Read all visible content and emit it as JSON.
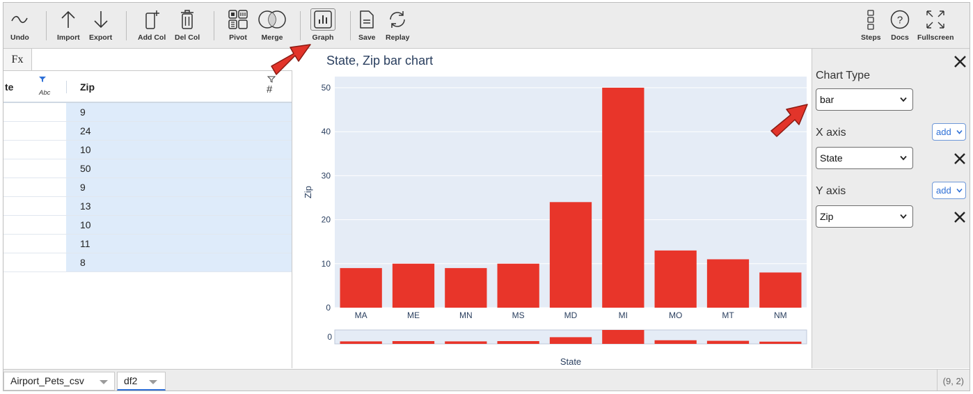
{
  "toolbar": {
    "undo": "Undo",
    "import": "Import",
    "export": "Export",
    "add_col": "Add Col",
    "del_col": "Del Col",
    "pivot": "Pivot",
    "merge": "Merge",
    "graph": "Graph",
    "save": "Save",
    "replay": "Replay",
    "steps": "Steps",
    "docs": "Docs",
    "fullscreen": "Fullscreen"
  },
  "formula_bar": {
    "label": "Fx"
  },
  "grid": {
    "col0_header": "te",
    "col0_type": "Abc",
    "col1_header": "Zip",
    "col1_type": "#",
    "zip_values": [
      "9",
      "24",
      "10",
      "50",
      "9",
      "13",
      "10",
      "11",
      "8"
    ]
  },
  "chart_data": {
    "type": "bar",
    "title": "State, Zip bar chart",
    "xlabel": "State",
    "ylabel": "Zip",
    "categories": [
      "MA",
      "ME",
      "MN",
      "MS",
      "MD",
      "MI",
      "MO",
      "MT",
      "NM"
    ],
    "values": [
      9,
      10,
      9,
      10,
      24,
      50,
      13,
      11,
      8
    ],
    "yticks": [
      "0",
      "10",
      "20",
      "30",
      "40",
      "50"
    ],
    "ylim": [
      0,
      50
    ],
    "bar_color": "#e8352a",
    "grid": true,
    "rangeslider": true,
    "rangeslider_label": "0"
  },
  "panel": {
    "chart_type_label": "Chart Type",
    "chart_type_value": "bar",
    "x_axis_label": "X axis",
    "x_axis_value": "State",
    "y_axis_label": "Y axis",
    "y_axis_value": "Zip",
    "add_label": "add"
  },
  "tabs": [
    "Airport_Pets_csv",
    "df2"
  ],
  "status": {
    "coords": "(9, 2)"
  },
  "colors": {
    "accent": "#2d6fd6",
    "annotation_arrow": "#e2342a",
    "cell_highlight": "#deebfa"
  }
}
